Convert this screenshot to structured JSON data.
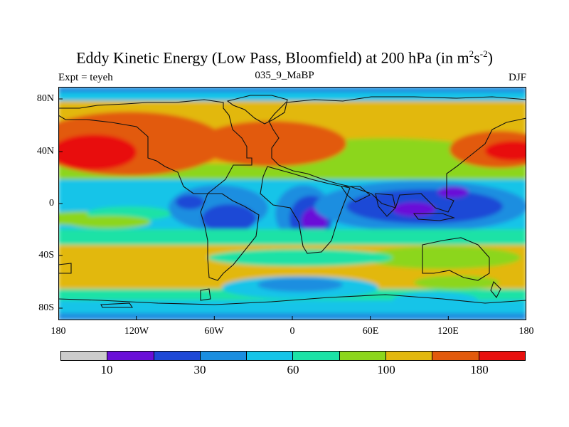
{
  "title": {
    "main": "Eddy Kinetic Energy (Low Pass, Bloomfield) at 200 hPa (in m",
    "sup1": "2",
    "mid": "s",
    "sup2": "-2",
    "end": ")"
  },
  "subtitle": {
    "left": "Expt = teyeh",
    "center": "035_9_MaBP",
    "right": "DJF"
  },
  "map": {
    "lat_labels": [
      "80N",
      "40N",
      "0",
      "40S",
      "80S"
    ],
    "lon_labels": [
      "180",
      "120W",
      "60W",
      "0",
      "60E",
      "120E",
      "180"
    ]
  },
  "colorbar": {
    "colors": [
      "#cccccc",
      "#6a0fd8",
      "#1e48d6",
      "#1a8ee0",
      "#14c4e8",
      "#1be2a6",
      "#8cd61c",
      "#e2b80e",
      "#e25a0c",
      "#e8100e"
    ],
    "labels": [
      "10",
      "30",
      "60",
      "100",
      "180"
    ]
  },
  "colors": {
    "deep_blue": "#1e48d6",
    "violet": "#6a0fd8",
    "blue": "#1a8ee0",
    "cyan": "#14c4e8",
    "teal": "#1be2a6",
    "green": "#8cd61c",
    "gold": "#e2b80e",
    "orange": "#e25a0c",
    "red": "#e8100e"
  }
}
